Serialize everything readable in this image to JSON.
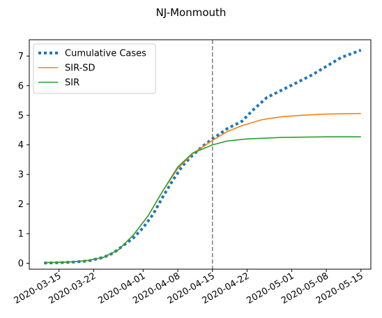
{
  "chart_data": {
    "type": "line",
    "title": "NJ-Monmouth",
    "xlabel": "",
    "ylabel": "",
    "x_ticks": [
      "2020-03-15",
      "2020-03-22",
      "2020-04-01",
      "2020-04-08",
      "2020-04-15",
      "2020-04-22",
      "2020-05-01",
      "2020-05-08",
      "2020-05-15"
    ],
    "y_ticks": [
      "0",
      "1",
      "2",
      "3",
      "4",
      "5",
      "6",
      "7"
    ],
    "ylim": [
      -0.2,
      7.55
    ],
    "xlim": [
      "2020-03-09",
      "2020-05-17"
    ],
    "grid": false,
    "legend_position": "top-left",
    "vline": {
      "date": "2020-04-15",
      "style": "dashed",
      "color": "#7f7f7f"
    },
    "series": [
      {
        "name": "Cumulative Cases",
        "style": "dotted",
        "color": "#1f77b4",
        "points": [
          [
            "2020-03-12",
            0.01
          ],
          [
            "2020-03-15",
            0.02
          ],
          [
            "2020-03-18",
            0.04
          ],
          [
            "2020-03-21",
            0.08
          ],
          [
            "2020-03-24",
            0.2
          ],
          [
            "2020-03-26",
            0.35
          ],
          [
            "2020-03-28",
            0.6
          ],
          [
            "2020-03-30",
            0.85
          ],
          [
            "2020-04-01",
            1.2
          ],
          [
            "2020-04-03",
            1.65
          ],
          [
            "2020-04-05",
            2.25
          ],
          [
            "2020-04-07",
            2.8
          ],
          [
            "2020-04-09",
            3.3
          ],
          [
            "2020-04-11",
            3.65
          ],
          [
            "2020-04-13",
            3.95
          ],
          [
            "2020-04-15",
            4.2
          ],
          [
            "2020-04-18",
            4.55
          ],
          [
            "2020-04-21",
            4.8
          ],
          [
            "2020-04-23",
            5.15
          ],
          [
            "2020-04-26",
            5.6
          ],
          [
            "2020-04-29",
            5.85
          ],
          [
            "2020-05-02",
            6.1
          ],
          [
            "2020-05-05",
            6.35
          ],
          [
            "2020-05-08",
            6.65
          ],
          [
            "2020-05-11",
            6.95
          ],
          [
            "2020-05-15",
            7.2
          ]
        ]
      },
      {
        "name": "SIR-SD",
        "style": "solid",
        "color": "#ff7f0e",
        "points": [
          [
            "2020-03-12",
            0.02
          ],
          [
            "2020-03-15",
            0.03
          ],
          [
            "2020-03-18",
            0.05
          ],
          [
            "2020-03-21",
            0.1
          ],
          [
            "2020-03-24",
            0.2
          ],
          [
            "2020-03-27",
            0.45
          ],
          [
            "2020-03-30",
            0.95
          ],
          [
            "2020-04-02",
            1.6
          ],
          [
            "2020-04-05",
            2.45
          ],
          [
            "2020-04-08",
            3.2
          ],
          [
            "2020-04-11",
            3.7
          ],
          [
            "2020-04-15",
            4.15
          ],
          [
            "2020-04-18",
            4.45
          ],
          [
            "2020-04-21",
            4.65
          ],
          [
            "2020-04-25",
            4.85
          ],
          [
            "2020-04-29",
            4.95
          ],
          [
            "2020-05-03",
            5.0
          ],
          [
            "2020-05-08",
            5.04
          ],
          [
            "2020-05-15",
            5.06
          ]
        ]
      },
      {
        "name": "SIR",
        "style": "solid",
        "color": "#2ca02c",
        "points": [
          [
            "2020-03-12",
            0.02
          ],
          [
            "2020-03-15",
            0.03
          ],
          [
            "2020-03-18",
            0.05
          ],
          [
            "2020-03-21",
            0.1
          ],
          [
            "2020-03-24",
            0.2
          ],
          [
            "2020-03-27",
            0.45
          ],
          [
            "2020-03-30",
            0.95
          ],
          [
            "2020-04-02",
            1.6
          ],
          [
            "2020-04-05",
            2.45
          ],
          [
            "2020-04-08",
            3.25
          ],
          [
            "2020-04-11",
            3.72
          ],
          [
            "2020-04-15",
            4.0
          ],
          [
            "2020-04-18",
            4.13
          ],
          [
            "2020-04-22",
            4.2
          ],
          [
            "2020-04-29",
            4.25
          ],
          [
            "2020-05-08",
            4.27
          ],
          [
            "2020-05-15",
            4.27
          ]
        ]
      }
    ]
  }
}
